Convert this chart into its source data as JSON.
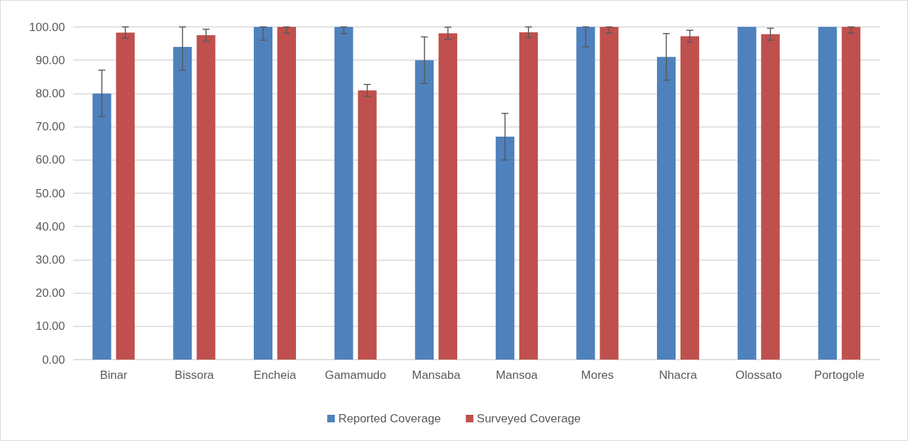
{
  "chart_data": {
    "type": "bar",
    "categories": [
      "Binar",
      "Bissora",
      "Encheia",
      "Gamamudo",
      "Mansaba",
      "Mansoa",
      "Mores",
      "Nhacra",
      "Olossato",
      "Portogole"
    ],
    "series": [
      {
        "name": "Reported Coverage",
        "color": "#4f81bd",
        "values": [
          80,
          94,
          100,
          100,
          90,
          67,
          100,
          91,
          100,
          100
        ],
        "errors": [
          7,
          [
            87,
            100
          ],
          [
            96,
            100
          ],
          [
            98,
            100
          ],
          7,
          7,
          [
            94,
            100
          ],
          7,
          null,
          null
        ]
      },
      {
        "name": "Surveyed Coverage",
        "color": "#c0504d",
        "values": [
          98.3,
          97.5,
          100,
          80.9,
          98.1,
          98.4,
          100,
          97.2,
          97.8,
          100
        ],
        "errors": [
          1.7,
          1.8,
          [
            98.1,
            100
          ],
          1.8,
          1.8,
          1.6,
          [
            98.2,
            100
          ],
          1.8,
          1.8,
          [
            98.2,
            100
          ]
        ]
      }
    ],
    "ylim": [
      0,
      100
    ],
    "yticks": [
      {
        "value": 0,
        "label": "0.00"
      },
      {
        "value": 10,
        "label": "10.00"
      },
      {
        "value": 20,
        "label": "20.00"
      },
      {
        "value": 30,
        "label": "30.00"
      },
      {
        "value": 40,
        "label": "40.00"
      },
      {
        "value": 50,
        "label": "50.00"
      },
      {
        "value": 60,
        "label": "60.00"
      },
      {
        "value": 70,
        "label": "70.00"
      },
      {
        "value": 80,
        "label": "80.00"
      },
      {
        "value": 90,
        "label": "90.00"
      },
      {
        "value": 100,
        "label": "100.00"
      }
    ],
    "grid": "y",
    "legend": "bottom"
  }
}
